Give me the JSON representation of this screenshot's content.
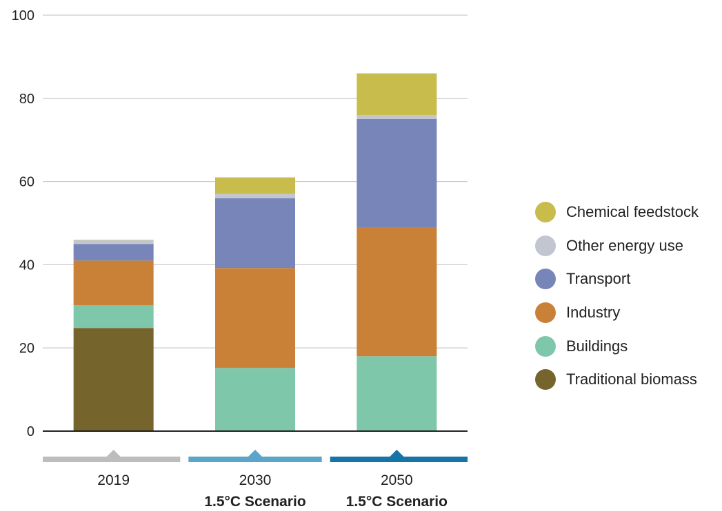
{
  "chart_data": {
    "type": "bar",
    "stacked": true,
    "categories": [
      "2019",
      "2030",
      "2050"
    ],
    "category_sublabels": [
      "",
      "1.5°C Scenario",
      "1.5°C Scenario"
    ],
    "category_marker_colors": [
      "#bdbdbd",
      "#5aa5c9",
      "#1574a8"
    ],
    "ylim": [
      0,
      100
    ],
    "yticks": [
      0,
      20,
      40,
      60,
      80,
      100
    ],
    "grid": true,
    "legend_position": "right",
    "series": [
      {
        "name": "Traditional biomass",
        "color": "#75652c",
        "values": [
          24.8,
          0,
          0
        ]
      },
      {
        "name": "Buildings",
        "color": "#7ec7ab",
        "values": [
          5.5,
          15.2,
          18.0
        ]
      },
      {
        "name": "Industry",
        "color": "#c98138",
        "values": [
          10.7,
          24.0,
          31.0
        ]
      },
      {
        "name": "Transport",
        "color": "#7785b8",
        "values": [
          4.0,
          16.8,
          26.0
        ]
      },
      {
        "name": "Other energy use",
        "color": "#c1c6d1",
        "values": [
          0.9,
          1.0,
          1.0
        ]
      },
      {
        "name": "Chemical feedstock",
        "color": "#c8bc4c",
        "values": [
          0.1,
          4.0,
          10.0
        ]
      }
    ]
  }
}
